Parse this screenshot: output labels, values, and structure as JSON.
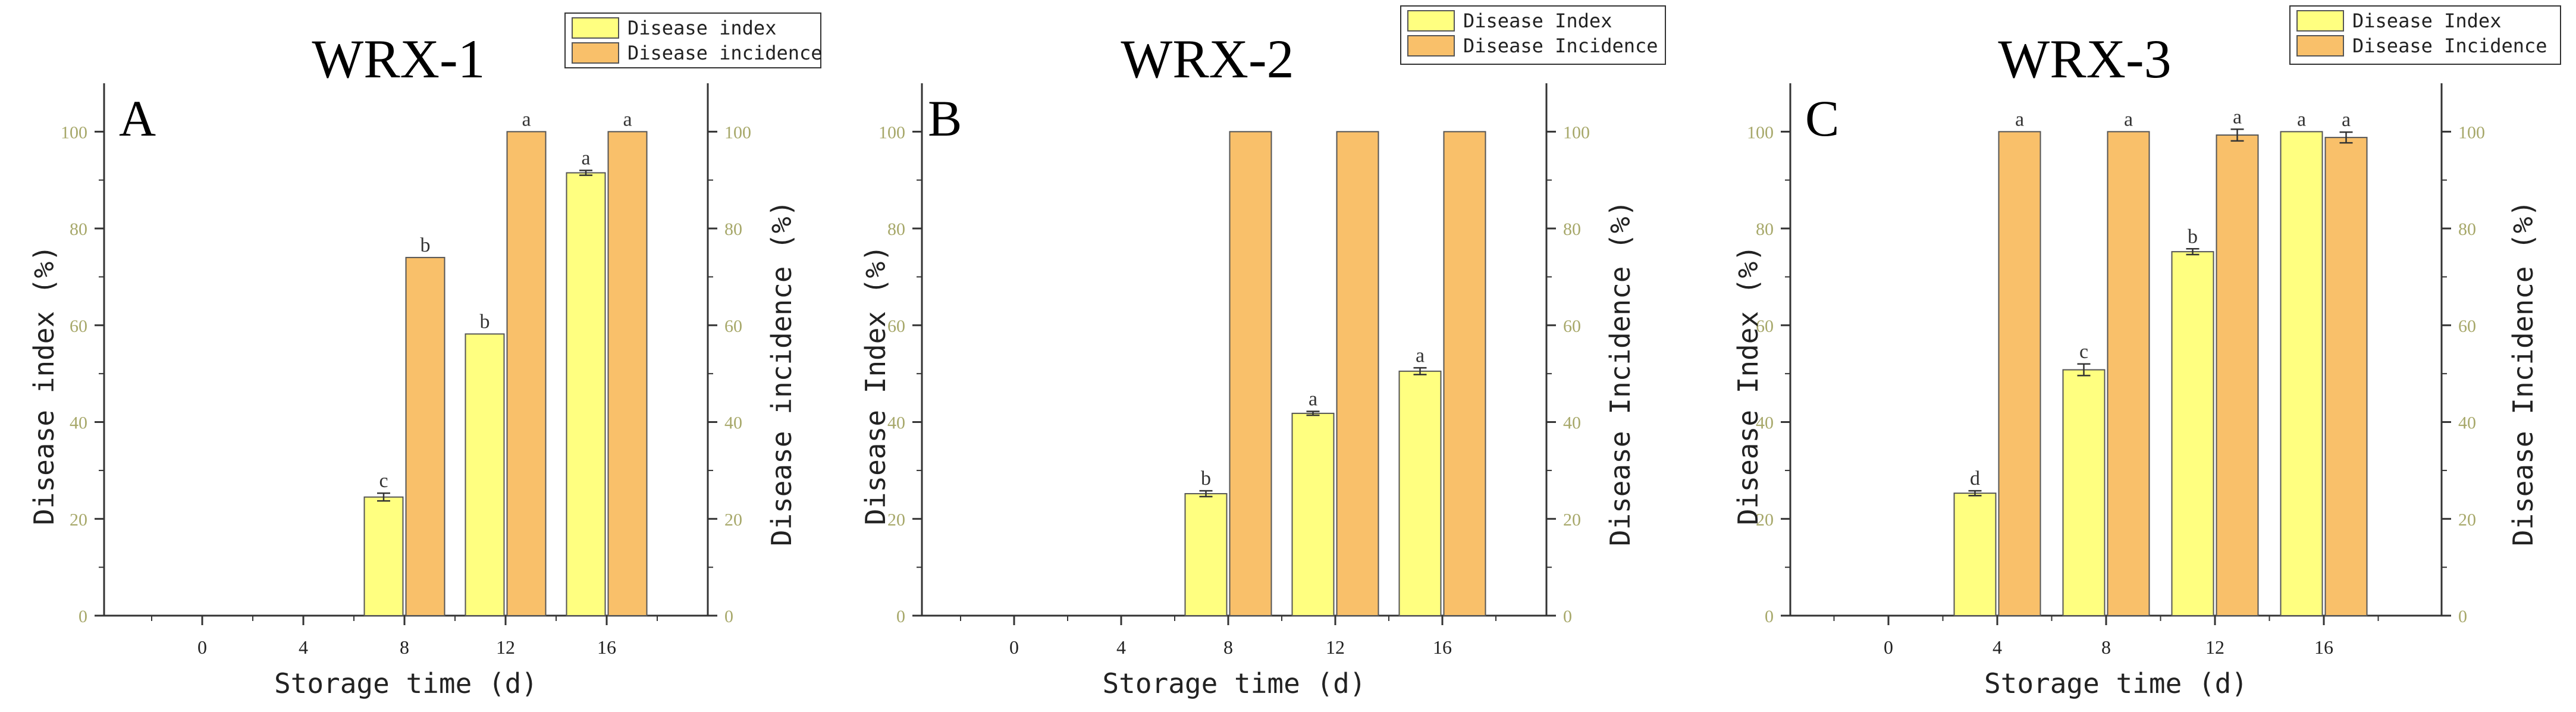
{
  "colors": {
    "index_fill": "#FFFF80",
    "incidence_fill": "#F9C06A",
    "bar_stroke": "#555555",
    "left_tick": "#A7A86A",
    "axis": "#333333"
  },
  "chart_data": [
    {
      "type": "bar",
      "title": "WRX-1",
      "panel_letter": "A",
      "xlabel": "Storage time (d)",
      "ylabel_left": "Disease index (%)",
      "ylabel_right": "Disease incidence (%)",
      "categories": [
        "0",
        "4",
        "8",
        "12",
        "16"
      ],
      "ylim": [
        0,
        110
      ],
      "yticks": [
        0,
        20,
        40,
        60,
        80,
        100
      ],
      "legend_position": "top-right",
      "series": [
        {
          "name": "Disease index",
          "axis": "left",
          "values": [
            0,
            0,
            24.5,
            58.2,
            91.5
          ],
          "errors": [
            0,
            0,
            0.8,
            0,
            0.5
          ],
          "letters": [
            "",
            "",
            "c",
            "b",
            "a"
          ]
        },
        {
          "name": "Disease incidence",
          "axis": "right",
          "values": [
            0,
            0,
            74,
            100,
            100
          ],
          "errors": [
            0,
            0,
            0,
            0,
            0
          ],
          "letters": [
            "",
            "",
            "b",
            "a",
            "a"
          ]
        }
      ]
    },
    {
      "type": "bar",
      "title": "WRX-2",
      "panel_letter": "B",
      "xlabel": "Storage time (d)",
      "ylabel_left": "Disease Index (%)",
      "ylabel_right": "Disease Incidence (%)",
      "categories": [
        "0",
        "4",
        "8",
        "12",
        "16"
      ],
      "ylim": [
        0,
        110
      ],
      "yticks": [
        0,
        20,
        40,
        60,
        80,
        100
      ],
      "legend_position": "top-right",
      "series": [
        {
          "name": "Disease Index",
          "axis": "left",
          "values": [
            0,
            0,
            25.2,
            41.8,
            50.5
          ],
          "errors": [
            0,
            0,
            0.6,
            0.4,
            0.7
          ],
          "letters": [
            "",
            "",
            "b",
            "a",
            "a"
          ]
        },
        {
          "name": "Disease Incidence",
          "axis": "right",
          "values": [
            0,
            0,
            100,
            100,
            100
          ],
          "errors": [
            0,
            0,
            0,
            0,
            0
          ],
          "letters": [
            "",
            "",
            "",
            "",
            ""
          ]
        }
      ]
    },
    {
      "type": "bar",
      "title": "WRX-3",
      "panel_letter": "C",
      "xlabel": "Storage time (d)",
      "ylabel_left": "Disease Index (%)",
      "ylabel_right": "Disease Incidence (%)",
      "categories": [
        "0",
        "4",
        "8",
        "12",
        "16"
      ],
      "ylim": [
        0,
        110
      ],
      "yticks": [
        0,
        20,
        40,
        60,
        80,
        100
      ],
      "legend_position": "top-right",
      "series": [
        {
          "name": "Disease Index",
          "axis": "left",
          "values": [
            0,
            25.3,
            50.8,
            75.2,
            100
          ],
          "errors": [
            0,
            0.5,
            1.2,
            0.6,
            0
          ],
          "letters": [
            "",
            "d",
            "c",
            "b",
            "a"
          ]
        },
        {
          "name": "Disease Incidence",
          "axis": "right",
          "values": [
            0,
            100,
            100,
            99.3,
            98.8
          ],
          "errors": [
            0,
            0,
            0,
            1.2,
            1.1
          ],
          "letters": [
            "",
            "a",
            "a",
            "a",
            "a"
          ]
        }
      ]
    }
  ]
}
